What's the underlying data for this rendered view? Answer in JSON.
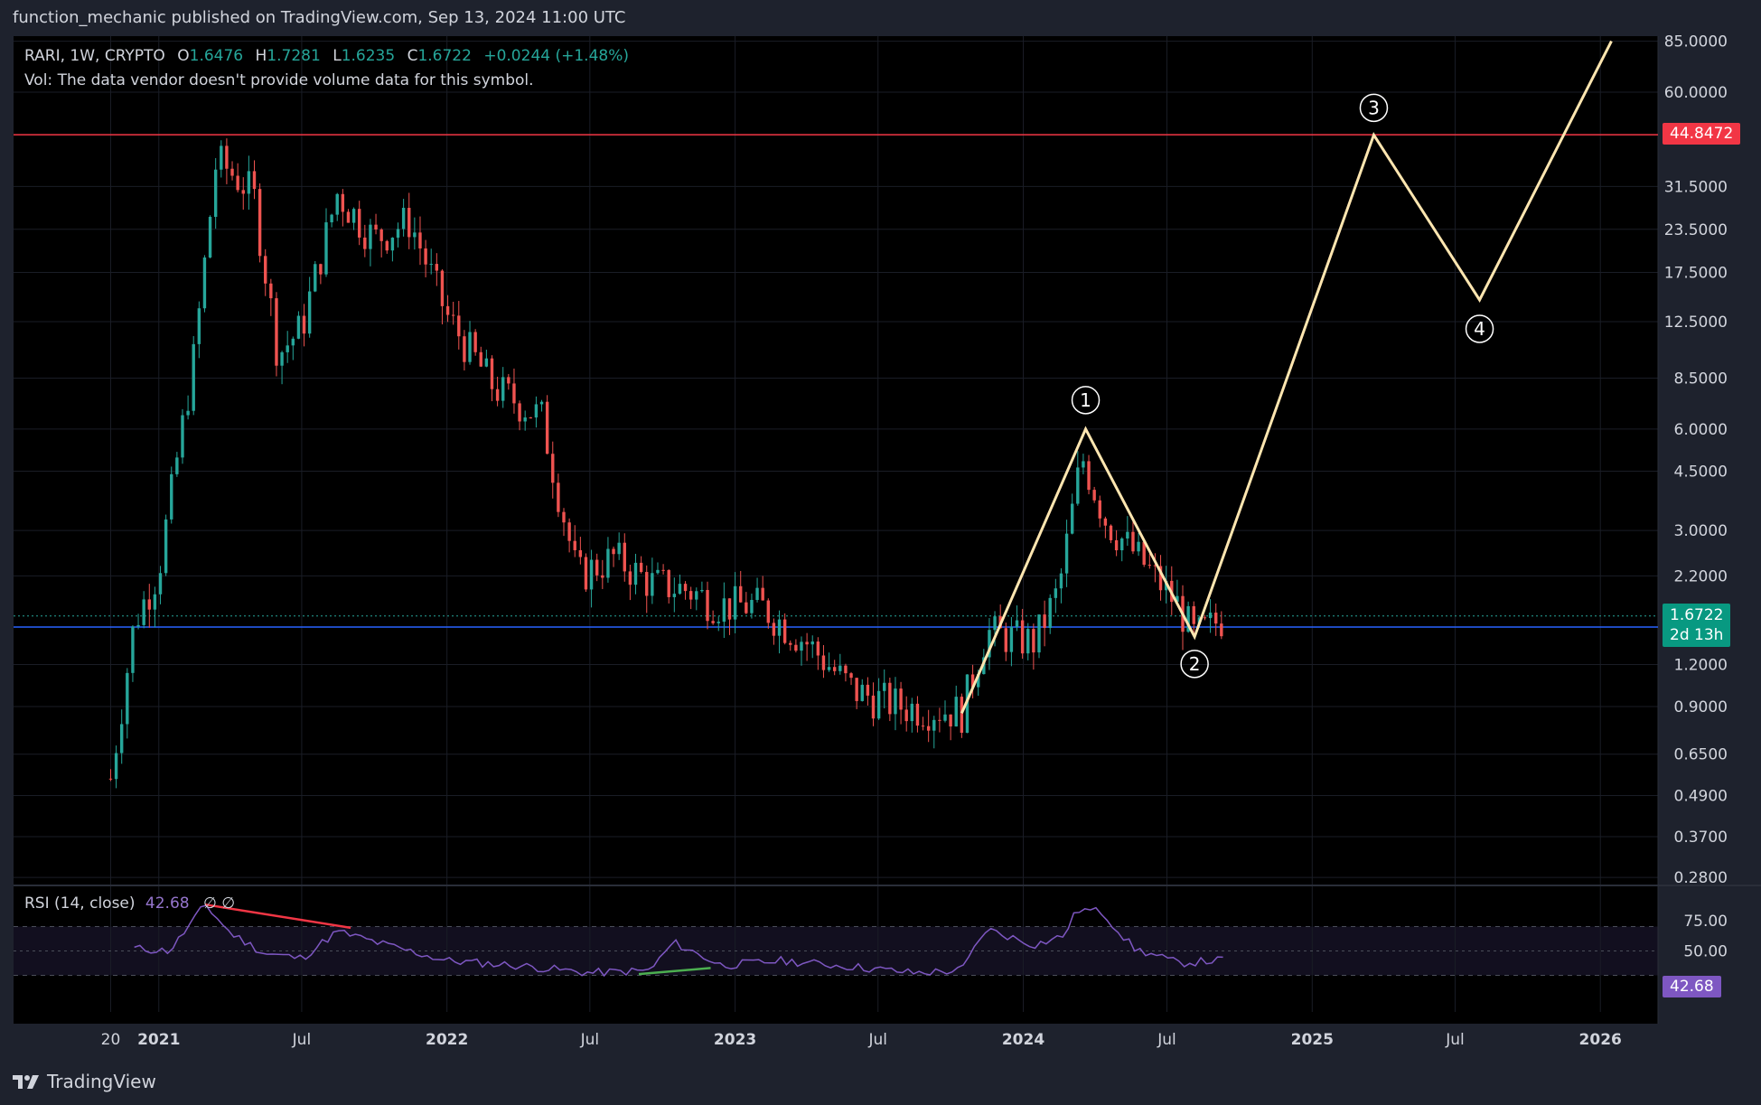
{
  "header": {
    "text": "function_mechanic published on TradingView.com, Sep 13, 2024 11:00 UTC"
  },
  "legend": {
    "symbol": "RARI, 1W, CRYPTO",
    "open_label": "O",
    "open": "1.6476",
    "high_label": "H",
    "high": "1.7281",
    "low_label": "L",
    "low": "1.6235",
    "close_label": "C",
    "close": "1.6722",
    "change": "+0.0244 (+1.48%)",
    "volume_note": "Vol: The data vendor doesn't provide volume data for this symbol."
  },
  "rsi_legend": {
    "label": "RSI (14, close)",
    "value": "42.68",
    "icons": "∅  ∅"
  },
  "badges": {
    "resistance": "44.8472",
    "price": "1.6722",
    "countdown": "2d 13h",
    "rsi": "42.68"
  },
  "footer": {
    "brand": "TradingView",
    "logo_icon": "tradingview-logo-icon"
  },
  "colors": {
    "background": "#000000",
    "frame": "#1e222d",
    "up": "#26a69a",
    "down": "#ef5350",
    "wave": "#ffe6b0",
    "rsi": "#7e57c2",
    "resistance": "#f23645",
    "support": "#2962ff"
  },
  "chart_data": {
    "type": "candlestick",
    "scale": "log",
    "x_ticks": [
      "20",
      "2021",
      "Jul",
      "2022",
      "Jul",
      "2023",
      "Jul",
      "2024",
      "Jul",
      "2025",
      "Jul",
      "2026"
    ],
    "y_ticks": [
      "85.0000",
      "60.0000",
      "44.8472",
      "31.5000",
      "23.5000",
      "17.5000",
      "12.5000",
      "8.5000",
      "6.0000",
      "4.5000",
      "3.0000",
      "2.2000",
      "1.6722",
      "1.2000",
      "0.9000",
      "0.6500",
      "0.4900",
      "0.3700",
      "0.2800"
    ],
    "ylim": [
      0.27,
      88
    ],
    "resistance_level": 44.8472,
    "support_level": 1.55,
    "last_price": 1.6722,
    "series": [
      {
        "date": "2020-11-01",
        "close": 0.55
      },
      {
        "date": "2020-12-01",
        "close": 1.6
      },
      {
        "date": "2021-01-01",
        "close": 2.3
      },
      {
        "date": "2021-02-15",
        "close": 10
      },
      {
        "date": "2021-03-15",
        "close": 38
      },
      {
        "date": "2021-05-01",
        "close": 30
      },
      {
        "date": "2021-06-01",
        "close": 10
      },
      {
        "date": "2021-07-01",
        "close": 12
      },
      {
        "date": "2021-08-15",
        "close": 30
      },
      {
        "date": "2021-10-01",
        "close": 22
      },
      {
        "date": "2021-11-15",
        "close": 25
      },
      {
        "date": "2022-01-01",
        "close": 13
      },
      {
        "date": "2022-03-01",
        "close": 8
      },
      {
        "date": "2022-05-01",
        "close": 6.5
      },
      {
        "date": "2022-06-15",
        "close": 2.2
      },
      {
        "date": "2022-08-01",
        "close": 2.5
      },
      {
        "date": "2022-09-15",
        "close": 2.1
      },
      {
        "date": "2022-11-01",
        "close": 2.0
      },
      {
        "date": "2022-12-15",
        "close": 1.8
      },
      {
        "date": "2023-02-01",
        "close": 1.8
      },
      {
        "date": "2023-04-01",
        "close": 1.4
      },
      {
        "date": "2023-06-01",
        "close": 1.0
      },
      {
        "date": "2023-08-01",
        "close": 0.9
      },
      {
        "date": "2023-10-15",
        "close": 0.87
      },
      {
        "date": "2023-11-15",
        "close": 1.5
      },
      {
        "date": "2024-01-15",
        "close": 1.4
      },
      {
        "date": "2024-02-15",
        "close": 2.0
      },
      {
        "date": "2024-03-15",
        "close": 5.0
      },
      {
        "date": "2024-04-15",
        "close": 3.2
      },
      {
        "date": "2024-06-01",
        "close": 2.4
      },
      {
        "date": "2024-07-15",
        "close": 1.8
      },
      {
        "date": "2024-08-05",
        "close": 1.45
      },
      {
        "date": "2024-09-13",
        "close": 1.6722
      }
    ],
    "wave_projection": {
      "labels": [
        "①",
        "②",
        "③",
        "④"
      ],
      "points": [
        {
          "date": "2023-10-15",
          "value": 0.86
        },
        {
          "date": "2024-03-20",
          "value": 6.0
        },
        {
          "date": "2024-08-05",
          "value": 1.45
        },
        {
          "date": "2025-03-20",
          "value": 44.8
        },
        {
          "date": "2025-08-01",
          "value": 14.5
        },
        {
          "date": "2026-01-15",
          "value": 85
        }
      ]
    },
    "rsi": {
      "name": "RSI (14, close)",
      "ylim": [
        0,
        100
      ],
      "y_ticks": [
        "75.00",
        "50.00"
      ],
      "bands": [
        30,
        50,
        70
      ],
      "values": [
        {
          "date": "2020-12-01",
          "value": 52
        },
        {
          "date": "2021-01-15",
          "value": 50
        },
        {
          "date": "2021-03-01",
          "value": 88
        },
        {
          "date": "2021-04-01",
          "value": 65
        },
        {
          "date": "2021-05-15",
          "value": 48
        },
        {
          "date": "2021-07-01",
          "value": 44
        },
        {
          "date": "2021-08-15",
          "value": 66
        },
        {
          "date": "2021-10-15",
          "value": 55
        },
        {
          "date": "2022-01-01",
          "value": 42
        },
        {
          "date": "2022-04-01",
          "value": 38
        },
        {
          "date": "2022-07-01",
          "value": 32
        },
        {
          "date": "2022-09-15",
          "value": 34
        },
        {
          "date": "2022-10-15",
          "value": 57
        },
        {
          "date": "2022-12-15",
          "value": 38
        },
        {
          "date": "2023-03-01",
          "value": 42
        },
        {
          "date": "2023-06-01",
          "value": 37
        },
        {
          "date": "2023-08-15",
          "value": 32
        },
        {
          "date": "2023-10-15",
          "value": 34
        },
        {
          "date": "2023-11-15",
          "value": 68
        },
        {
          "date": "2024-01-15",
          "value": 55
        },
        {
          "date": "2024-02-20",
          "value": 62
        },
        {
          "date": "2024-03-10",
          "value": 84
        },
        {
          "date": "2024-04-10",
          "value": 82
        },
        {
          "date": "2024-05-20",
          "value": 52
        },
        {
          "date": "2024-07-15",
          "value": 40
        },
        {
          "date": "2024-09-13",
          "value": 42.68
        }
      ],
      "divergences": [
        {
          "color": "#f23645",
          "from": {
            "date": "2021-03-01",
            "value": 88
          },
          "to": {
            "date": "2021-09-01",
            "value": 69
          }
        },
        {
          "color": "#4caf50",
          "from": {
            "date": "2022-09-01",
            "value": 31
          },
          "to": {
            "date": "2022-12-01",
            "value": 36
          }
        }
      ]
    }
  }
}
